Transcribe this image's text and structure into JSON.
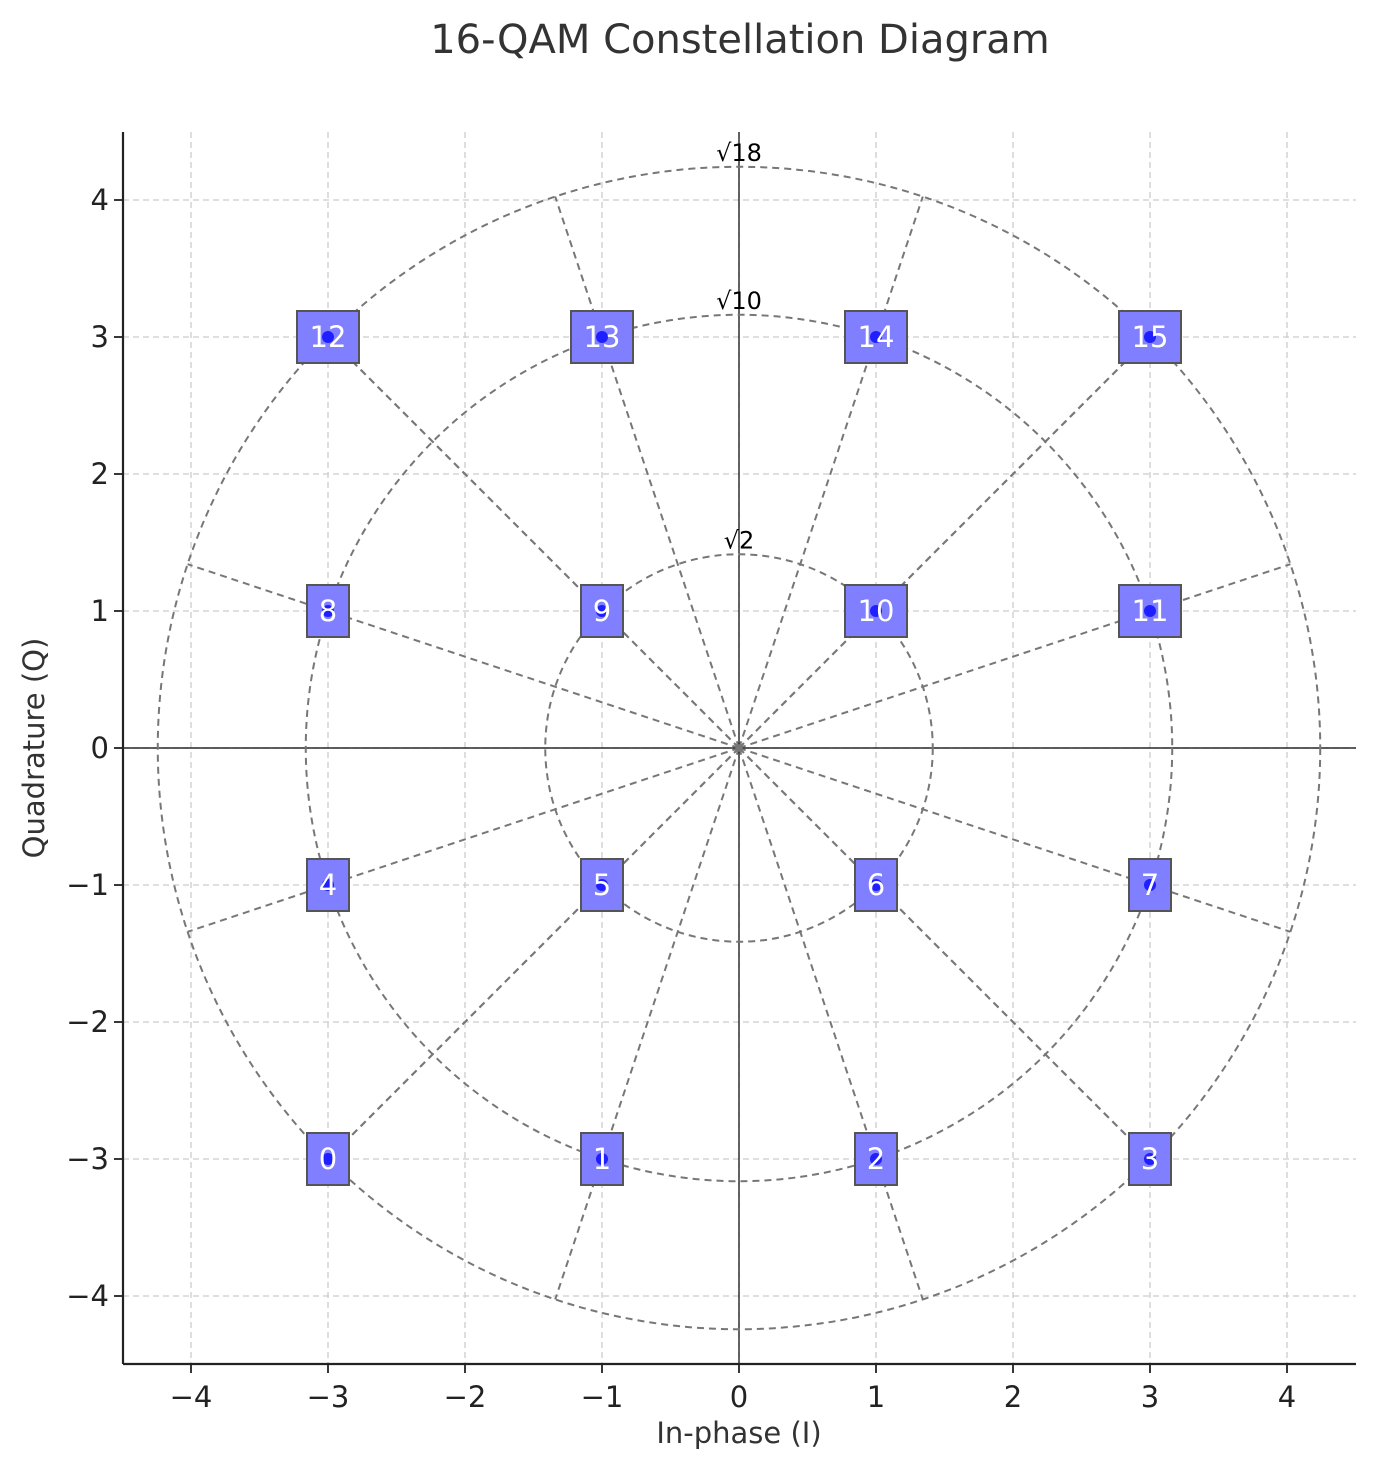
{
  "chart_data": {
    "type": "scatter",
    "title": "16-QAM Constellation Diagram",
    "xlabel": "In-phase (I)",
    "ylabel": "Quadrature (Q)",
    "xlim": [
      -4.5,
      4.5
    ],
    "ylim": [
      -4.5,
      4.5
    ],
    "xticks": [
      "−4",
      "−3",
      "−2",
      "−1",
      "0",
      "1",
      "2",
      "3",
      "4"
    ],
    "yticks": [
      "−4",
      "−3",
      "−2",
      "−1",
      "0",
      "1",
      "2",
      "3",
      "4"
    ],
    "grid": true,
    "rings": [
      {
        "radius": 1.4142,
        "label": "√2"
      },
      {
        "radius": 3.1623,
        "label": "√10"
      },
      {
        "radius": 4.2426,
        "label": "√18"
      }
    ],
    "points": [
      {
        "label": "0",
        "x": -3,
        "y": -3
      },
      {
        "label": "1",
        "x": -1,
        "y": -3
      },
      {
        "label": "2",
        "x": 1,
        "y": -3
      },
      {
        "label": "3",
        "x": 3,
        "y": -3
      },
      {
        "label": "4",
        "x": -3,
        "y": -1
      },
      {
        "label": "5",
        "x": -1,
        "y": -1
      },
      {
        "label": "6",
        "x": 1,
        "y": -1
      },
      {
        "label": "7",
        "x": 3,
        "y": -1
      },
      {
        "label": "8",
        "x": -3,
        "y": 1
      },
      {
        "label": "9",
        "x": -1,
        "y": 1
      },
      {
        "label": "10",
        "x": 1,
        "y": 1
      },
      {
        "label": "11",
        "x": 3,
        "y": 1
      },
      {
        "label": "12",
        "x": -3,
        "y": 3
      },
      {
        "label": "13",
        "x": -1,
        "y": 3
      },
      {
        "label": "14",
        "x": 1,
        "y": 3
      },
      {
        "label": "15",
        "x": 3,
        "y": 3
      }
    ],
    "colors": {
      "box_fill": "#7f7fff",
      "box_stroke": "#555555",
      "marker": "#1f1fff",
      "ring": "#777777",
      "grid": "#cccccc"
    }
  }
}
